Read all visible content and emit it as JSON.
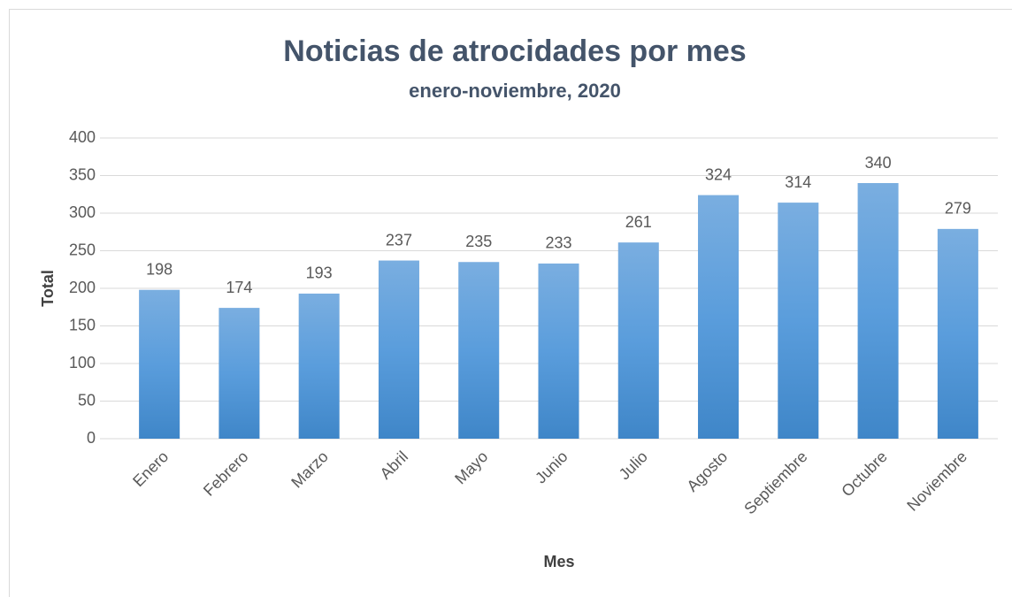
{
  "chart_data": {
    "type": "bar",
    "title": "Noticias de atrocidades por mes",
    "subtitle": "enero-noviembre, 2020",
    "x_label": "Mes",
    "y_label": "Total",
    "categories": [
      "Enero",
      "Febrero",
      "Marzo",
      "Abril",
      "Mayo",
      "Junio",
      "Julio",
      "Agosto",
      "Septiembre",
      "Octubre",
      "Noviembre"
    ],
    "values": [
      198,
      174,
      193,
      237,
      235,
      233,
      261,
      324,
      314,
      340,
      279
    ],
    "color": "#5b9bd5",
    "ylim": [
      0,
      400
    ],
    "yticks": [
      0,
      50,
      100,
      150,
      200,
      250,
      300,
      350,
      400
    ],
    "grid": true
  }
}
